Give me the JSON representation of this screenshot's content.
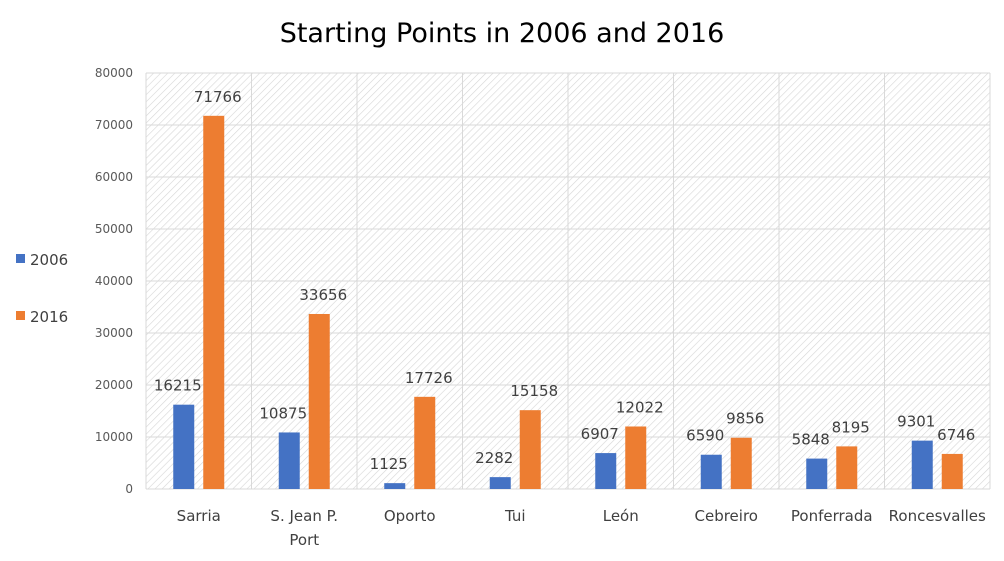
{
  "chart_data": {
    "type": "bar",
    "title": "Starting Points in 2006 and 2016",
    "xlabel": "",
    "ylabel": "",
    "ylim": [
      0,
      80000
    ],
    "yticks": [
      0,
      10000,
      20000,
      30000,
      40000,
      50000,
      60000,
      70000,
      80000
    ],
    "grid": true,
    "legend_position": "left",
    "categories": [
      "Sarria",
      "S. Jean P. Port",
      "Oporto",
      "Tui",
      "León",
      "Cebreiro",
      "Ponferrada",
      "Roncesvalles"
    ],
    "series": [
      {
        "name": "2006",
        "color": "#4472C4",
        "values": [
          16215,
          10875,
          1125,
          2282,
          6907,
          6590,
          5848,
          9301
        ]
      },
      {
        "name": "2016",
        "color": "#ED7D31",
        "values": [
          71766,
          33656,
          17726,
          15158,
          12022,
          9856,
          8195,
          6746
        ]
      }
    ]
  }
}
